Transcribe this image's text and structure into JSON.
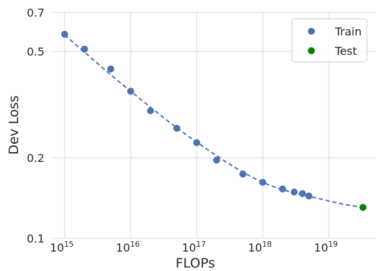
{
  "chart_data": {
    "type": "scatter",
    "xlabel": "FLOPs",
    "ylabel": "Dev Loss",
    "x_scale": "log",
    "y_scale": "log",
    "xlim": [
      500000000000000.0,
      1e+20
    ],
    "ylim": [
      0.1,
      0.7
    ],
    "x_ticks": [
      {
        "value": 1000000000000000.0,
        "base": "10",
        "exp": "15"
      },
      {
        "value": 1e+16,
        "base": "10",
        "exp": "16"
      },
      {
        "value": 1e+17,
        "base": "10",
        "exp": "17"
      },
      {
        "value": 1e+18,
        "base": "10",
        "exp": "18"
      },
      {
        "value": 1e+19,
        "base": "10",
        "exp": "19"
      }
    ],
    "y_ticks": [
      {
        "value": 0.1,
        "label": "0.1"
      },
      {
        "value": 0.2,
        "label": "0.2"
      },
      {
        "value": 0.5,
        "label": "0.5"
      },
      {
        "value": 0.7,
        "label": "0.7"
      }
    ],
    "grid": true,
    "legend_position": "top-right",
    "series": [
      {
        "name": "Train",
        "color": "#4c72b0",
        "points": [
          {
            "x": 1000000000000000.0,
            "y": 0.58
          },
          {
            "x": 2000000000000000.0,
            "y": 0.51
          },
          {
            "x": 5000000000000000.0,
            "y": 0.43
          },
          {
            "x": 1e+16,
            "y": 0.355
          },
          {
            "x": 2e+16,
            "y": 0.3
          },
          {
            "x": 5e+16,
            "y": 0.258
          },
          {
            "x": 1e+17,
            "y": 0.228
          },
          {
            "x": 2e+17,
            "y": 0.196
          },
          {
            "x": 5e+17,
            "y": 0.174
          },
          {
            "x": 1e+18,
            "y": 0.162
          },
          {
            "x": 2e+18,
            "y": 0.153
          },
          {
            "x": 3e+18,
            "y": 0.149
          },
          {
            "x": 4e+18,
            "y": 0.147
          },
          {
            "x": 5e+18,
            "y": 0.144
          }
        ]
      },
      {
        "name": "Test",
        "color": "#008000",
        "points": [
          {
            "x": 3.3e+19,
            "y": 0.1305
          }
        ]
      }
    ],
    "fit_line": {
      "style": "dashed",
      "color": "#4c72b0",
      "points": [
        {
          "x": 1000000000000000.0,
          "y": 0.575
        },
        {
          "x": 1e+16,
          "y": 0.355
        },
        {
          "x": 1e+17,
          "y": 0.229
        },
        {
          "x": 1e+18,
          "y": 0.162
        },
        {
          "x": 1e+19,
          "y": 0.138
        },
        {
          "x": 3.3e+19,
          "y": 0.1305
        }
      ]
    }
  }
}
